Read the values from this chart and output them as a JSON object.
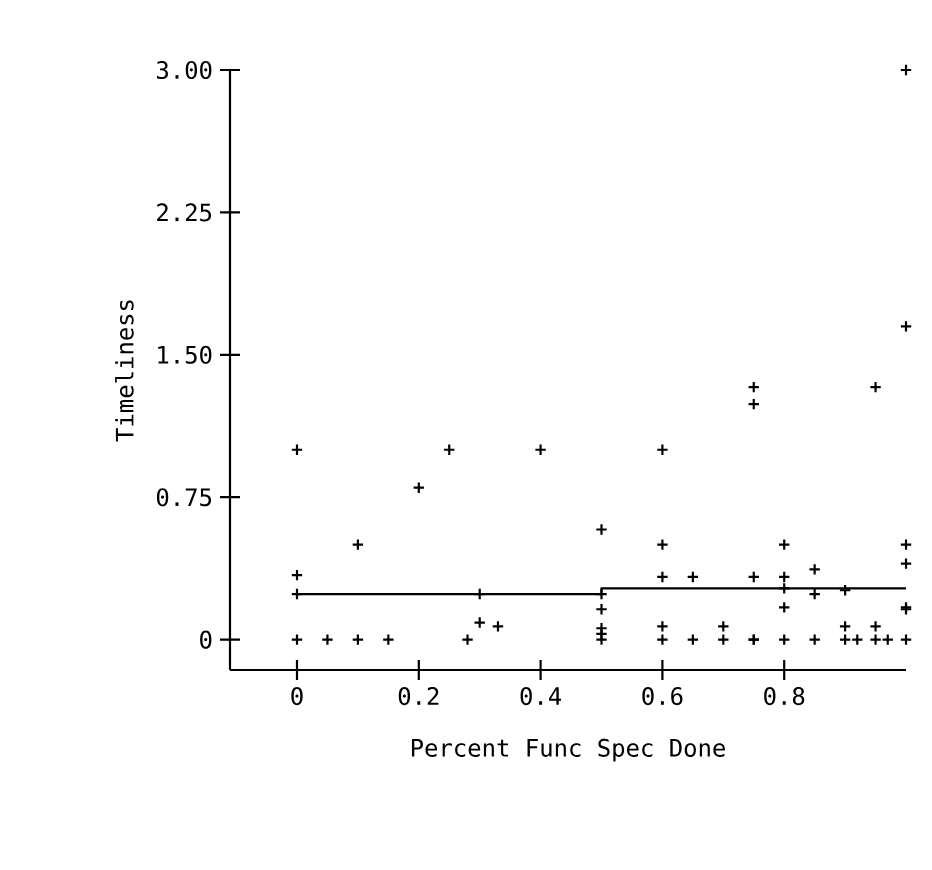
{
  "chart_data": {
    "type": "scatter",
    "xlabel": "Percent Func Spec Done",
    "ylabel": "Timeliness",
    "xlim": [
      -0.11,
      1.0
    ],
    "ylim": [
      -0.16,
      3.0
    ],
    "xticks": [
      0,
      0.2,
      0.4,
      0.6,
      0.8
    ],
    "yticks": [
      {
        "value": 0,
        "label": "0"
      },
      {
        "value": 0.75,
        "label": "0.75"
      },
      {
        "value": 1.5,
        "label": "1.50"
      },
      {
        "value": 2.25,
        "label": "2.25"
      },
      {
        "value": 3,
        "label": "3.00"
      }
    ],
    "grid": false,
    "series": [
      {
        "color": "#000000",
        "marker": "cross",
        "x": [
          0,
          0,
          0,
          0,
          0.05,
          0.1,
          0.1,
          0.15,
          0.2,
          0.25,
          0.28,
          0.3,
          0.3,
          0.33,
          0.4,
          0.5,
          0.5,
          0.5,
          0.5,
          0.5,
          0.5,
          0.6,
          0.6,
          0.6,
          0.6,
          0.6,
          0.65,
          0.65,
          0.7,
          0.7,
          0.75,
          0.75,
          0.75,
          0.75,
          0.75,
          0.8,
          0.8,
          0.8,
          0.8,
          0.8,
          0.85,
          0.85,
          0.85,
          0.9,
          0.9,
          0.9,
          0.92,
          0.95,
          0.95,
          0.95,
          0.97,
          1.0,
          1.0,
          1.0,
          1.0,
          1.0,
          1.0,
          1.0
        ],
        "values": [
          1.0,
          0.34,
          0.24,
          0,
          0,
          0.5,
          0,
          0,
          0.8,
          1.0,
          0,
          0.24,
          0.09,
          0.07,
          1.0,
          0.58,
          0.24,
          0.16,
          0.06,
          0.03,
          0,
          1.0,
          0.5,
          0.33,
          0.07,
          0,
          0.33,
          0,
          0.07,
          0,
          1.33,
          1.24,
          0.33,
          0,
          0,
          0.5,
          0.33,
          0.27,
          0.17,
          0,
          0.37,
          0.24,
          0,
          0.26,
          0.07,
          0,
          0,
          1.33,
          0.07,
          0,
          0,
          3.0,
          1.65,
          0.5,
          0.4,
          0.17,
          0.16,
          0
        ]
      },
      {
        "type": "line",
        "color": "#000000",
        "marker": "none",
        "line_style": "solid",
        "x": [
          0,
          0.5,
          0.5,
          1.0
        ],
        "values": [
          0.24,
          0.24,
          0.27,
          0.27
        ]
      }
    ]
  }
}
